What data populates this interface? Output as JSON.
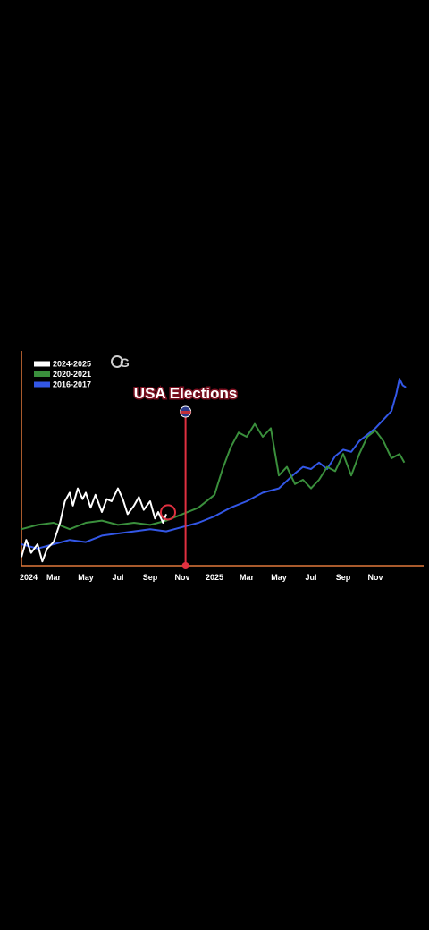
{
  "chart_data": {
    "type": "line",
    "title": "",
    "xlabel": "",
    "ylabel": "",
    "x_tick_labels": [
      "2024",
      "Mar",
      "May",
      "Jul",
      "Sep",
      "Nov",
      "2025",
      "Mar",
      "May",
      "Jul",
      "Sep",
      "Nov"
    ],
    "x_range_months": [
      0,
      24
    ],
    "y_axis_labels": false,
    "grid": false,
    "legend_position": "top-left",
    "series": [
      {
        "name": "2024-2025",
        "color": "#ffffff",
        "points": [
          [
            0,
            0.04
          ],
          [
            0.3,
            0.12
          ],
          [
            0.6,
            0.06
          ],
          [
            1,
            0.1
          ],
          [
            1.3,
            0.02
          ],
          [
            1.6,
            0.08
          ],
          [
            2,
            0.11
          ],
          [
            2.4,
            0.2
          ],
          [
            2.7,
            0.3
          ],
          [
            3,
            0.34
          ],
          [
            3.2,
            0.28
          ],
          [
            3.5,
            0.36
          ],
          [
            3.8,
            0.31
          ],
          [
            4,
            0.34
          ],
          [
            4.3,
            0.27
          ],
          [
            4.6,
            0.33
          ],
          [
            5,
            0.25
          ],
          [
            5.3,
            0.31
          ],
          [
            5.6,
            0.3
          ],
          [
            6,
            0.36
          ],
          [
            6.3,
            0.31
          ],
          [
            6.6,
            0.24
          ],
          [
            7,
            0.28
          ],
          [
            7.3,
            0.32
          ],
          [
            7.6,
            0.26
          ],
          [
            8,
            0.3
          ],
          [
            8.3,
            0.22
          ],
          [
            8.5,
            0.25
          ],
          [
            8.8,
            0.2
          ],
          [
            9,
            0.24
          ]
        ]
      },
      {
        "name": "2020-2021",
        "color": "#3a8f3c",
        "points": [
          [
            0,
            0.17
          ],
          [
            1,
            0.19
          ],
          [
            2,
            0.2
          ],
          [
            3,
            0.17
          ],
          [
            4,
            0.2
          ],
          [
            5,
            0.21
          ],
          [
            6,
            0.19
          ],
          [
            7,
            0.2
          ],
          [
            8,
            0.19
          ],
          [
            9,
            0.21
          ],
          [
            10,
            0.24
          ],
          [
            11,
            0.27
          ],
          [
            12,
            0.33
          ],
          [
            12.5,
            0.45
          ],
          [
            13,
            0.55
          ],
          [
            13.5,
            0.62
          ],
          [
            14,
            0.6
          ],
          [
            14.5,
            0.66
          ],
          [
            15,
            0.6
          ],
          [
            15.5,
            0.64
          ],
          [
            16,
            0.42
          ],
          [
            16.5,
            0.46
          ],
          [
            17,
            0.38
          ],
          [
            17.5,
            0.4
          ],
          [
            18,
            0.36
          ],
          [
            18.5,
            0.4
          ],
          [
            19,
            0.46
          ],
          [
            19.5,
            0.44
          ],
          [
            20,
            0.52
          ],
          [
            20.5,
            0.42
          ],
          [
            21,
            0.52
          ],
          [
            21.5,
            0.6
          ],
          [
            22,
            0.63
          ],
          [
            22.5,
            0.58
          ],
          [
            23,
            0.5
          ],
          [
            23.5,
            0.52
          ],
          [
            23.8,
            0.48
          ]
        ]
      },
      {
        "name": "2016-2017",
        "color": "#3357e6",
        "points": [
          [
            0,
            0.1
          ],
          [
            1,
            0.08
          ],
          [
            2,
            0.1
          ],
          [
            3,
            0.12
          ],
          [
            4,
            0.11
          ],
          [
            5,
            0.14
          ],
          [
            6,
            0.15
          ],
          [
            7,
            0.16
          ],
          [
            8,
            0.17
          ],
          [
            9,
            0.16
          ],
          [
            10,
            0.18
          ],
          [
            11,
            0.2
          ],
          [
            12,
            0.23
          ],
          [
            13,
            0.27
          ],
          [
            14,
            0.3
          ],
          [
            15,
            0.34
          ],
          [
            16,
            0.36
          ],
          [
            17,
            0.43
          ],
          [
            17.5,
            0.46
          ],
          [
            18,
            0.45
          ],
          [
            18.5,
            0.48
          ],
          [
            19,
            0.45
          ],
          [
            19.5,
            0.51
          ],
          [
            20,
            0.54
          ],
          [
            20.5,
            0.53
          ],
          [
            21,
            0.58
          ],
          [
            21.5,
            0.61
          ],
          [
            22,
            0.64
          ],
          [
            22.5,
            0.68
          ],
          [
            23,
            0.72
          ],
          [
            23.3,
            0.8
          ],
          [
            23.5,
            0.87
          ],
          [
            23.7,
            0.84
          ],
          [
            23.9,
            0.83
          ]
        ]
      }
    ],
    "annotations": [
      {
        "label": "USA Elections",
        "x_month": 10.2,
        "color": "#e03040"
      }
    ]
  }
}
